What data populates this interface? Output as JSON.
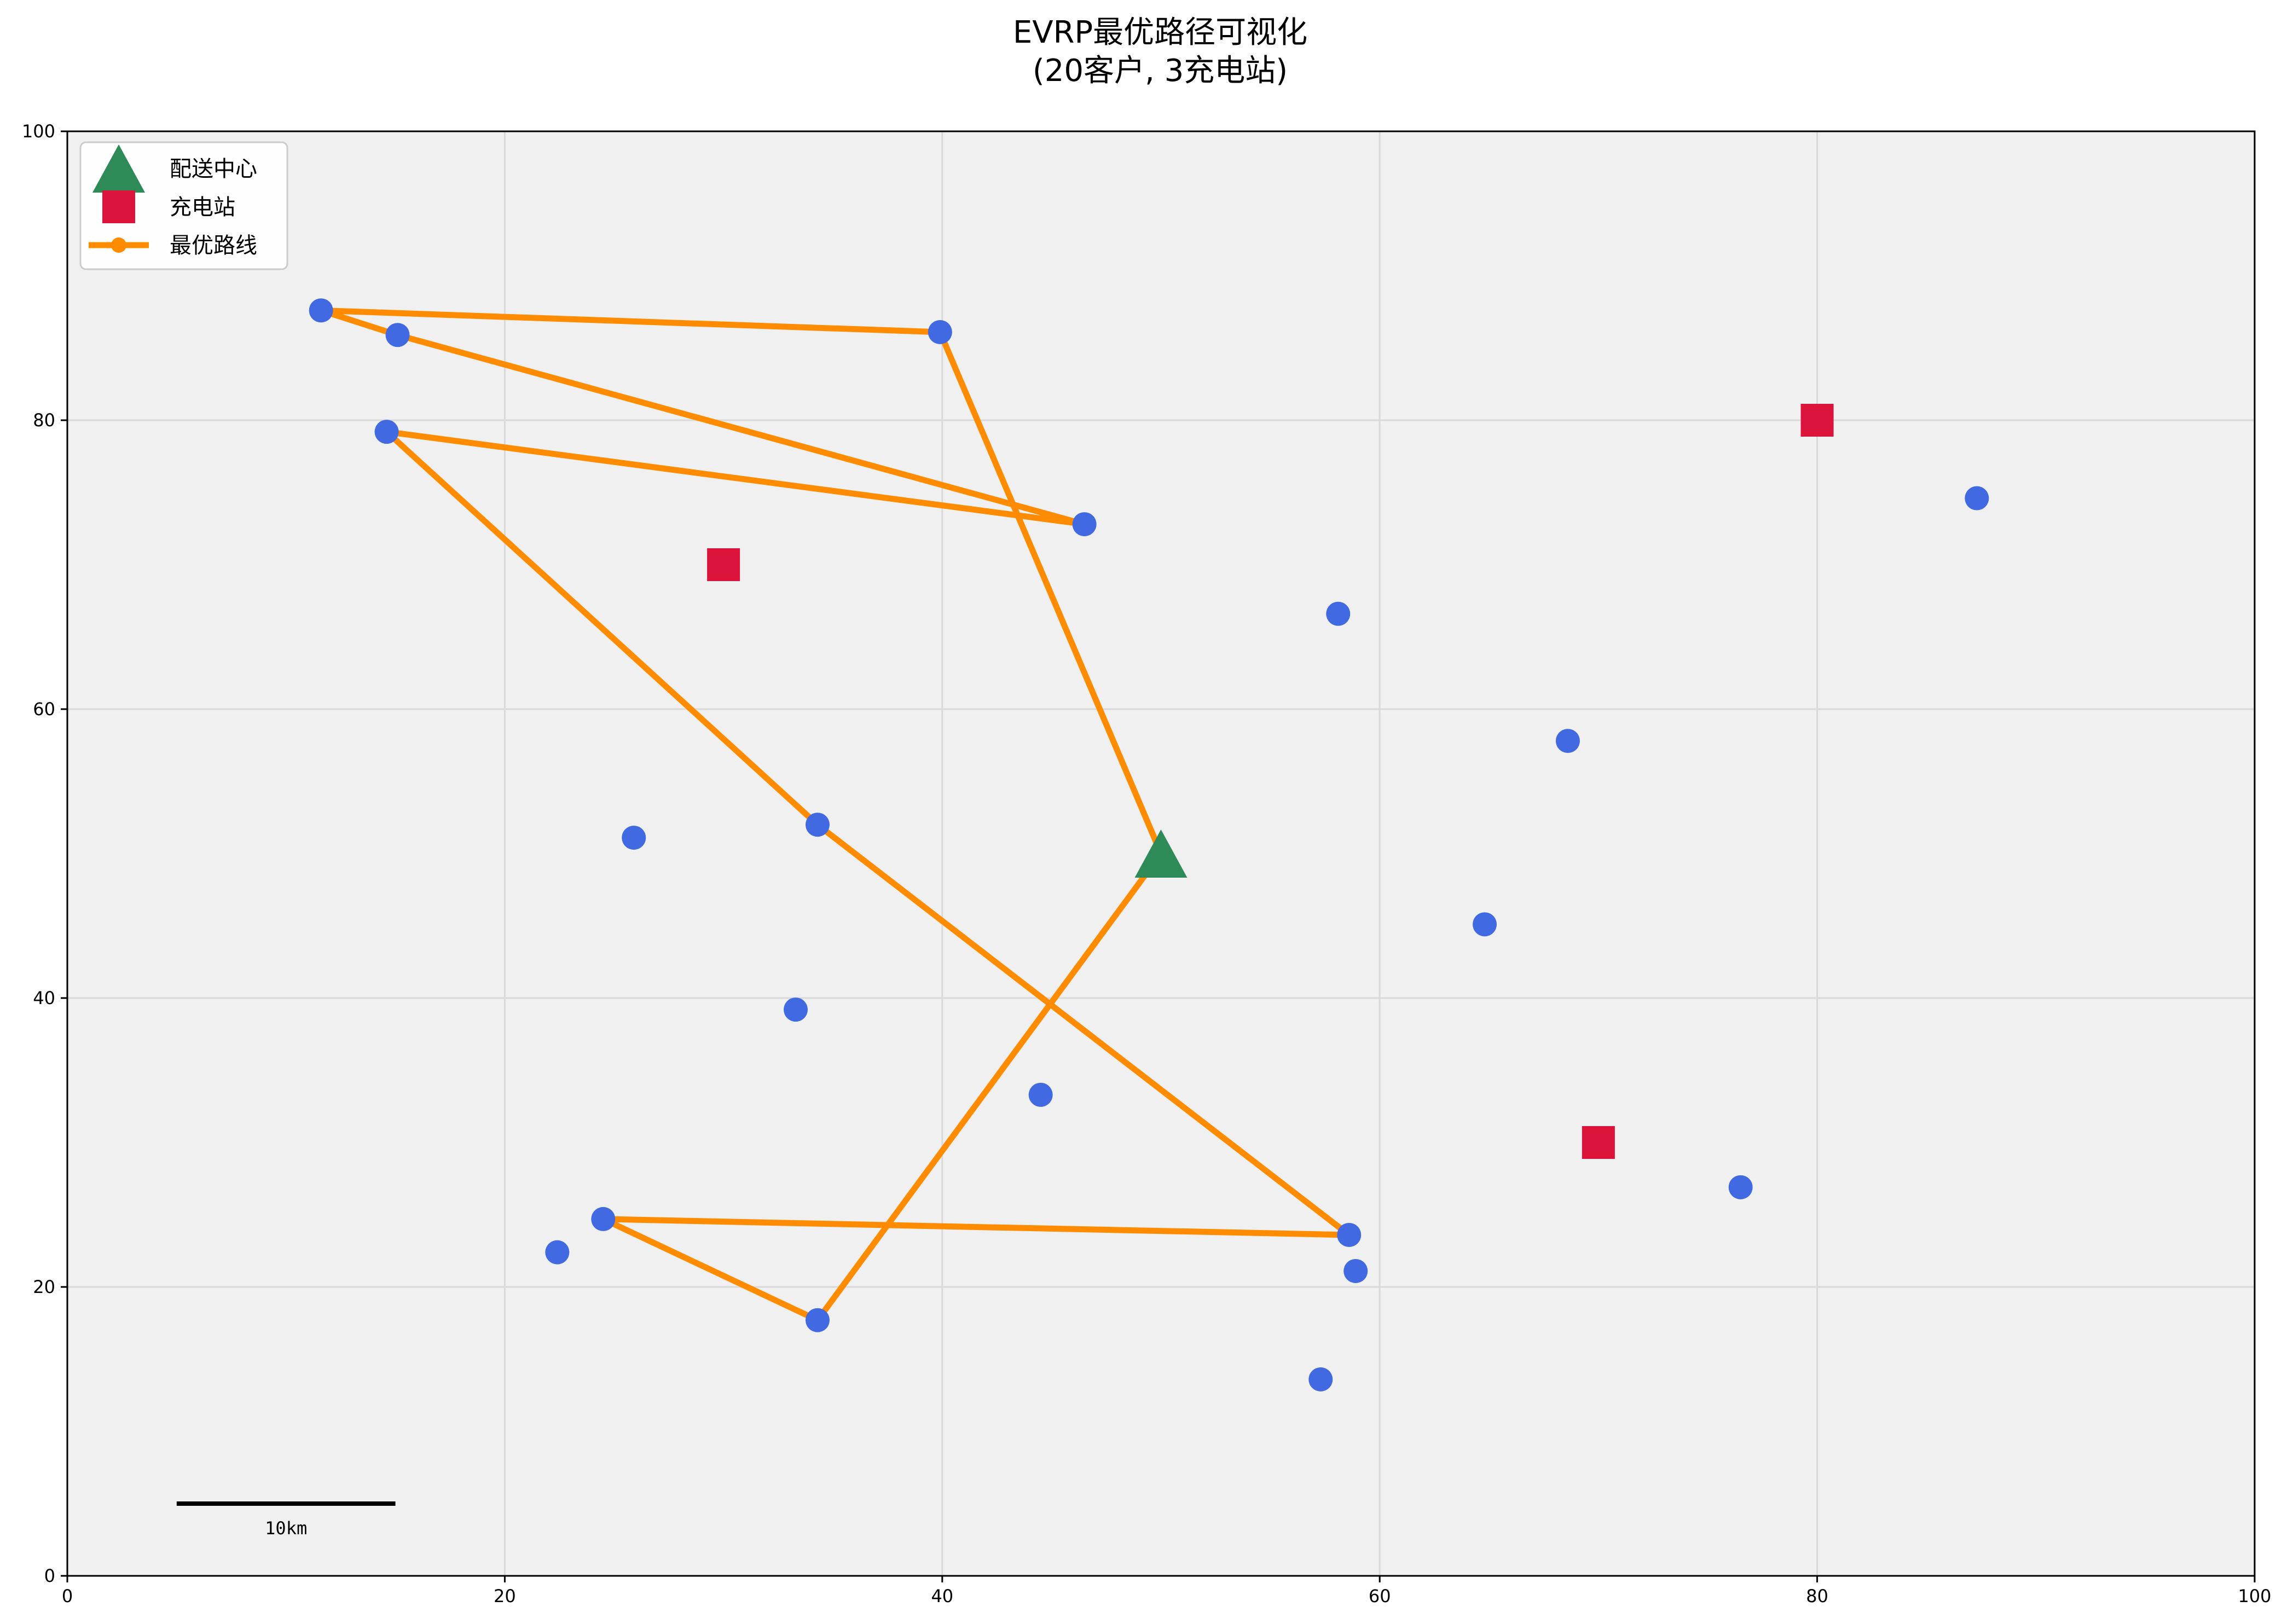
{
  "chart_data": {
    "type": "scatter",
    "title": "EVRP最优路径可视化",
    "subtitle": "(20客户, 3充电站)",
    "xlim": [
      0,
      100
    ],
    "ylim": [
      0,
      100
    ],
    "xticks": [
      0,
      20,
      40,
      60,
      80,
      100
    ],
    "yticks": [
      0,
      20,
      40,
      60,
      80,
      100
    ],
    "grid": true,
    "legend_position": "top-left",
    "colors": {
      "plot_background": "#f0f0f0",
      "depot": "#2e8b57",
      "station": "#dc143c",
      "route": "#ff8c00",
      "customer": "#4169e1",
      "grid": "#d9d9d9"
    },
    "legend": [
      {
        "label": "配送中心",
        "marker": "triangle",
        "color": "#2e8b57"
      },
      {
        "label": "充电站",
        "marker": "square",
        "color": "#dc143c"
      },
      {
        "label": "最优路线",
        "marker": "line-dot",
        "color": "#ff8c00"
      }
    ],
    "depot": {
      "x": 50,
      "y": 50
    },
    "stations": [
      {
        "x": 30,
        "y": 70
      },
      {
        "x": 80,
        "y": 80
      },
      {
        "x": 70,
        "y": 30
      }
    ],
    "customers": [
      {
        "x": 11.6,
        "y": 87.6
      },
      {
        "x": 15.1,
        "y": 85.9
      },
      {
        "x": 39.9,
        "y": 86.1
      },
      {
        "x": 14.6,
        "y": 79.2
      },
      {
        "x": 46.5,
        "y": 72.8
      },
      {
        "x": 87.3,
        "y": 74.6
      },
      {
        "x": 58.1,
        "y": 66.6
      },
      {
        "x": 68.6,
        "y": 57.8
      },
      {
        "x": 25.9,
        "y": 51.1
      },
      {
        "x": 34.3,
        "y": 52.0
      },
      {
        "x": 64.8,
        "y": 45.1
      },
      {
        "x": 33.3,
        "y": 39.2
      },
      {
        "x": 44.5,
        "y": 33.3
      },
      {
        "x": 76.5,
        "y": 26.9
      },
      {
        "x": 24.5,
        "y": 24.7
      },
      {
        "x": 22.4,
        "y": 22.4
      },
      {
        "x": 58.6,
        "y": 23.6
      },
      {
        "x": 58.9,
        "y": 21.1
      },
      {
        "x": 34.3,
        "y": 17.7
      },
      {
        "x": 57.3,
        "y": 13.6
      }
    ],
    "route": [
      {
        "x": 50.0,
        "y": 50.0
      },
      {
        "x": 39.9,
        "y": 86.1
      },
      {
        "x": 11.6,
        "y": 87.6
      },
      {
        "x": 15.1,
        "y": 85.9
      },
      {
        "x": 46.5,
        "y": 72.8
      },
      {
        "x": 14.6,
        "y": 79.2
      },
      {
        "x": 34.3,
        "y": 52.0
      },
      {
        "x": 58.6,
        "y": 23.6
      },
      {
        "x": 24.5,
        "y": 24.7
      },
      {
        "x": 34.3,
        "y": 17.7
      },
      {
        "x": 50.0,
        "y": 50.0
      }
    ],
    "scale_bar": {
      "label": "10km",
      "x_start": 5,
      "x_end": 15,
      "y": 5
    }
  }
}
